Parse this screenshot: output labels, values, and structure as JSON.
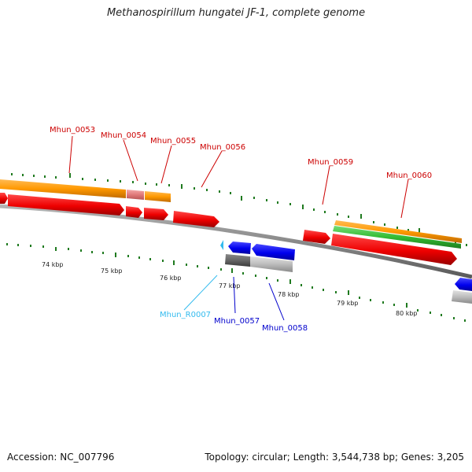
{
  "title": "Methanospirillum hungatei JF-1, complete genome",
  "footer": {
    "accession": "Accession: NC_007796",
    "summary": "Topology: circular; Length: 3,544,738 bp; Genes: 3,205"
  },
  "scale_labels": [
    "74 kbp",
    "75 kbp",
    "76 kbp",
    "77 kbp",
    "78 kbp",
    "79 kbp",
    "80 kbp"
  ],
  "colors": {
    "forward_gene": "#cc0000",
    "reverse_gene": "#0000cc",
    "rna_gene": "#00aadd",
    "cds_orange": "#ff9900",
    "cds_pink": "#e88080",
    "cds_green": "#33bb33",
    "cds_gray": "#aaaaaa",
    "tick": "#228822",
    "backbone": "#888888"
  },
  "genes": [
    {
      "id": "Mhun_0053",
      "strand": "+",
      "label": "Mhun_0053"
    },
    {
      "id": "Mhun_0054",
      "strand": "+",
      "label": "Mhun_0054"
    },
    {
      "id": "Mhun_0055",
      "strand": "+",
      "label": "Mhun_0055"
    },
    {
      "id": "Mhun_0056",
      "strand": "+",
      "label": "Mhun_0056"
    },
    {
      "id": "Mhun_0059",
      "strand": "+",
      "label": "Mhun_0059"
    },
    {
      "id": "Mhun_0060",
      "strand": "+",
      "label": "Mhun_0060"
    },
    {
      "id": "Mhun_R0007",
      "strand": "-",
      "label": "Mhun_R0007"
    },
    {
      "id": "Mhun_0057",
      "strand": "-",
      "label": "Mhun_0057"
    },
    {
      "id": "Mhun_0058",
      "strand": "-",
      "label": "Mhun_0058"
    }
  ]
}
